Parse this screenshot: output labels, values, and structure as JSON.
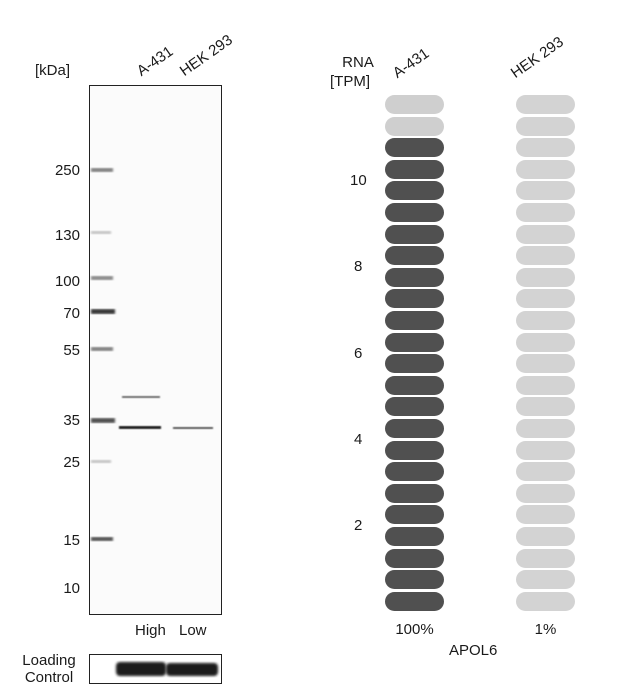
{
  "blot": {
    "unit_label": "[kDa]",
    "lanes": [
      "A-431",
      "HEK 293"
    ],
    "markers": [
      "250",
      "130",
      "100",
      "70",
      "55",
      "35",
      "25",
      "15",
      "10"
    ],
    "loading_labels": [
      "High",
      "Low"
    ],
    "loading_control_title": [
      "Loading",
      "Control"
    ]
  },
  "rna": {
    "axis_title": [
      "RNA",
      "[TPM]"
    ],
    "ticks": [
      "10",
      "8",
      "6",
      "4",
      "2"
    ],
    "columns": [
      {
        "name": "A-431",
        "percent": "100%",
        "filled_segments": 22,
        "total_segments": 24
      },
      {
        "name": "HEK 293",
        "percent": "1%",
        "filled_segments": 0,
        "total_segments": 24
      }
    ],
    "gene": "APOL6"
  },
  "colors": {
    "segment_dark": "#505050",
    "segment_light": "#d3d3d3",
    "segment_mid": "#cfcfcf",
    "band": "#1f1f1f"
  }
}
